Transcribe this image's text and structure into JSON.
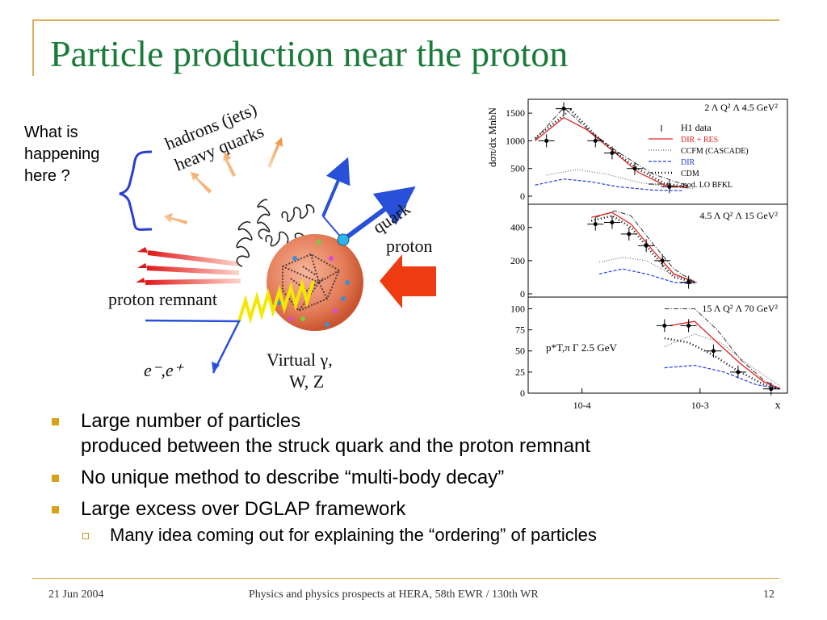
{
  "slide": {
    "title": "Particle production near the proton",
    "question_lines": [
      "What is",
      "happening",
      "here ?"
    ],
    "diagram": {
      "label_hadrons": "hadrons (jets)",
      "label_heavy_quarks": "heavy quarks",
      "label_quark": "quark",
      "label_proton": "proton",
      "label_remnant": "proton remnant",
      "label_electron": "e⁻,e⁺",
      "label_virtual1": "Virtual γ,",
      "label_virtual2": "W, Z"
    },
    "bullets": [
      {
        "lines": [
          "Large number of particles",
          "produced between the struck quark and the proton remnant"
        ]
      },
      {
        "lines": [
          "No unique method to describe “multi-body decay”"
        ]
      },
      {
        "lines": [
          "Large excess over DGLAP framework"
        ]
      }
    ],
    "sub_bullet": "Many idea coming out for explaining the “ordering” of particles"
  },
  "footer": {
    "date": "21 Jun 2004",
    "center": "Physics and physics prospects at HERA, 58th EWR / 130th WR",
    "page": "12"
  },
  "chart_data": {
    "type": "scatter",
    "x_scale": "log",
    "xlim": [
      3.5e-05,
      0.0055
    ],
    "x_ticks": [
      "10-4",
      "10-3"
    ],
    "xlabel": "x",
    "ylabel": "dσπ/dx MnbN",
    "legend": [
      "H1 data",
      "DIR + RES",
      "CCFM (CASCADE)",
      "DIR",
      "CDM",
      "mod. LO BFKL"
    ],
    "colors": {
      "data": "#000000",
      "dir_res": "#e02020",
      "ccfm": "#555555",
      "dir": "#2040e0",
      "cdm": "#000000",
      "bfkl": "#333333"
    },
    "panels": [
      {
        "label": "2 Λ Q² Λ 4.5 GeV²",
        "ylim": [
          0,
          1750
        ],
        "yticks": [
          0,
          500,
          1000,
          1500
        ],
        "data": [
          [
            5e-05,
            1000
          ],
          [
            7e-05,
            1580
          ],
          [
            0.00013,
            1000
          ],
          [
            0.00018,
            780
          ],
          [
            0.00028,
            500
          ],
          [
            0.00055,
            170
          ]
        ],
        "dir_res": [
          [
            4e-05,
            1000
          ],
          [
            7e-05,
            1420
          ],
          [
            0.00011,
            1200
          ],
          [
            0.0002,
            750
          ],
          [
            0.0003,
            430
          ],
          [
            0.0005,
            200
          ],
          [
            0.0008,
            150
          ]
        ],
        "ccfm": [
          [
            5e-05,
            380
          ],
          [
            9e-05,
            480
          ],
          [
            0.00016,
            400
          ],
          [
            0.0003,
            250
          ],
          [
            0.0006,
            160
          ],
          [
            0.0009,
            140
          ]
        ],
        "dir": [
          [
            4e-05,
            200
          ],
          [
            7e-05,
            310
          ],
          [
            0.00012,
            260
          ],
          [
            0.0002,
            170
          ],
          [
            0.0004,
            110
          ],
          [
            0.0007,
            100
          ]
        ],
        "cdm": [
          [
            4e-05,
            1050
          ],
          [
            8e-05,
            1560
          ],
          [
            0.00013,
            1100
          ],
          [
            0.0002,
            760
          ],
          [
            0.0003,
            490
          ],
          [
            0.0005,
            230
          ],
          [
            0.0008,
            160
          ]
        ],
        "bfkl": [
          [
            4e-05,
            1020
          ],
          [
            7e-05,
            1600
          ],
          [
            0.00012,
            1150
          ],
          [
            0.0002,
            800
          ],
          [
            0.0004,
            400
          ],
          [
            0.0008,
            180
          ]
        ]
      },
      {
        "label": "4.5 Λ Q² Λ 15 GeV²",
        "ylim": [
          0,
          520
        ],
        "yticks": [
          0,
          200,
          400
        ],
        "data": [
          [
            0.00013,
            420
          ],
          [
            0.00018,
            430
          ],
          [
            0.00025,
            360
          ],
          [
            0.00035,
            290
          ],
          [
            0.00048,
            200
          ],
          [
            0.0008,
            70
          ]
        ],
        "dir_res": [
          [
            0.00012,
            460
          ],
          [
            0.00018,
            490
          ],
          [
            0.00026,
            420
          ],
          [
            0.0004,
            260
          ],
          [
            0.0006,
            120
          ],
          [
            0.0009,
            70
          ]
        ],
        "ccfm": [
          [
            0.00014,
            190
          ],
          [
            0.00022,
            220
          ],
          [
            0.00035,
            200
          ],
          [
            0.0006,
            110
          ],
          [
            0.0009,
            80
          ]
        ],
        "dir": [
          [
            0.00014,
            120
          ],
          [
            0.00022,
            150
          ],
          [
            0.00035,
            120
          ],
          [
            0.0006,
            70
          ],
          [
            0.0009,
            60
          ]
        ],
        "cdm": [
          [
            0.00012,
            440
          ],
          [
            0.00018,
            470
          ],
          [
            0.00026,
            400
          ],
          [
            0.0004,
            240
          ],
          [
            0.0006,
            100
          ],
          [
            0.0009,
            70
          ]
        ],
        "bfkl": [
          [
            0.00013,
            460
          ],
          [
            0.00019,
            500
          ],
          [
            0.00026,
            470
          ],
          [
            0.0004,
            300
          ],
          [
            0.0006,
            150
          ],
          [
            0.0009,
            70
          ]
        ]
      },
      {
        "label": "15 Λ Q² Λ 70 GeV²",
        "annotation": "p*T,π Γ 2.5 GeV",
        "ylim": [
          0,
          110
        ],
        "yticks": [
          0,
          25,
          50,
          75,
          100
        ],
        "data": [
          [
            0.0005,
            80
          ],
          [
            0.0008,
            80
          ],
          [
            0.0013,
            50
          ],
          [
            0.0021,
            25
          ],
          [
            0.004,
            5
          ]
        ],
        "dir_res": [
          [
            0.00055,
            80
          ],
          [
            0.0009,
            85
          ],
          [
            0.0014,
            60
          ],
          [
            0.0022,
            35
          ],
          [
            0.0035,
            13
          ],
          [
            0.0048,
            5
          ]
        ],
        "ccfm": [
          [
            0.0005,
            55
          ],
          [
            0.0009,
            70
          ],
          [
            0.0015,
            60
          ],
          [
            0.0025,
            35
          ],
          [
            0.0048,
            8
          ]
        ],
        "dir": [
          [
            0.0005,
            30
          ],
          [
            0.0009,
            33
          ],
          [
            0.0016,
            25
          ],
          [
            0.003,
            10
          ],
          [
            0.0048,
            5
          ]
        ],
        "cdm": [
          [
            0.0005,
            65
          ],
          [
            0.0008,
            60
          ],
          [
            0.0013,
            45
          ],
          [
            0.002,
            28
          ],
          [
            0.0035,
            10
          ],
          [
            0.0048,
            5
          ]
        ],
        "bfkl": [
          [
            0.0005,
            100
          ],
          [
            0.0009,
            100
          ],
          [
            0.0014,
            75
          ],
          [
            0.0022,
            40
          ],
          [
            0.0035,
            15
          ],
          [
            0.0048,
            5
          ]
        ]
      }
    ]
  }
}
